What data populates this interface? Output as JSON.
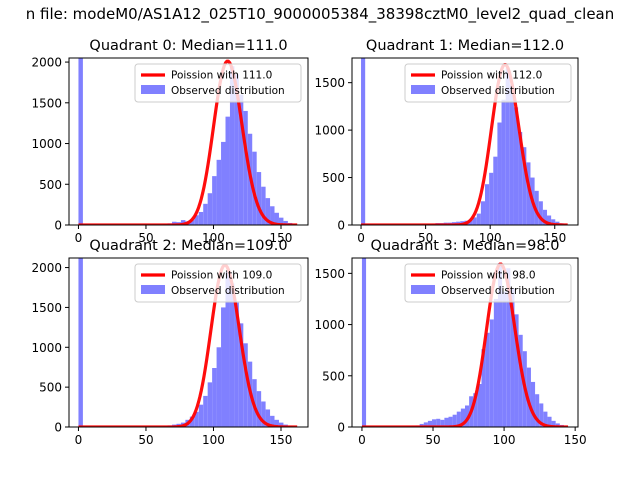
{
  "figure": {
    "suptitle": "n file: modeM0/AS1A12_025T10_9000005384_38398cztM0_level2_quad_clean"
  },
  "colors": {
    "bars": "#8080ff",
    "fit_line": "#ff0000",
    "axis": "#000000"
  },
  "chart_data": [
    {
      "type": "bar",
      "title": "Quadrant 0: Median=111.0",
      "xlabel": "",
      "ylabel": "",
      "xlim": [
        -7,
        170
      ],
      "ylim": [
        0,
        2050
      ],
      "xticks": [
        0,
        50,
        100,
        150
      ],
      "yticks": [
        0,
        500,
        1000,
        1500,
        2000
      ],
      "grid": false,
      "legend_position": "upper right",
      "series": [
        {
          "name": "Observed distribution",
          "kind": "histogram",
          "bin_width": 3.3,
          "bins": [
            [
              0,
              2050
            ],
            [
              3.3,
              10
            ],
            [
              6.6,
              8
            ],
            [
              9.9,
              6
            ],
            [
              13.2,
              5
            ],
            [
              16.5,
              5
            ],
            [
              19.8,
              4
            ],
            [
              23.1,
              4
            ],
            [
              26.4,
              4
            ],
            [
              29.7,
              4
            ],
            [
              33,
              3
            ],
            [
              36.3,
              3
            ],
            [
              39.6,
              3
            ],
            [
              42.9,
              3
            ],
            [
              46.2,
              4
            ],
            [
              49.5,
              4
            ],
            [
              52.8,
              5
            ],
            [
              56.1,
              5
            ],
            [
              59.4,
              6
            ],
            [
              62.7,
              10
            ],
            [
              66,
              20
            ],
            [
              69.3,
              40
            ],
            [
              72.6,
              35
            ],
            [
              75.9,
              60
            ],
            [
              79.2,
              45
            ],
            [
              82.5,
              60
            ],
            [
              85.8,
              120
            ],
            [
              89.1,
              160
            ],
            [
              92.4,
              260
            ],
            [
              95.7,
              390
            ],
            [
              99,
              600
            ],
            [
              102.3,
              800
            ],
            [
              105.6,
              1020
            ],
            [
              108.9,
              1330
            ],
            [
              112.2,
              1950
            ],
            [
              115.5,
              1850
            ],
            [
              118.8,
              1600
            ],
            [
              122.1,
              1400
            ],
            [
              125.4,
              1120
            ],
            [
              128.7,
              900
            ],
            [
              132,
              650
            ],
            [
              135.3,
              470
            ],
            [
              138.6,
              330
            ],
            [
              141.9,
              230
            ],
            [
              145.2,
              150
            ],
            [
              148.5,
              90
            ],
            [
              151.8,
              50
            ],
            [
              155.1,
              25
            ],
            [
              158.4,
              12
            ],
            [
              161.7,
              5
            ]
          ]
        },
        {
          "name": "Poission with 111.0",
          "kind": "poisson_line",
          "lambda": 111.0,
          "peak": 2010,
          "x_range": [
            0,
            162
          ]
        }
      ]
    },
    {
      "type": "bar",
      "title": "Quadrant 1: Median=112.0",
      "xlabel": "",
      "ylabel": "",
      "xlim": [
        -7,
        168
      ],
      "ylim": [
        0,
        1760
      ],
      "xticks": [
        0,
        50,
        100,
        150
      ],
      "yticks": [
        0,
        500,
        1000,
        1500
      ],
      "grid": false,
      "legend_position": "upper right",
      "series": [
        {
          "name": "Observed distribution",
          "kind": "histogram",
          "bin_width": 3.2,
          "bins": [
            [
              0,
              1760
            ],
            [
              3.2,
              10
            ],
            [
              6.4,
              8
            ],
            [
              9.6,
              6
            ],
            [
              12.8,
              5
            ],
            [
              16,
              5
            ],
            [
              19.2,
              4
            ],
            [
              22.4,
              4
            ],
            [
              25.6,
              4
            ],
            [
              28.8,
              4
            ],
            [
              32,
              3
            ],
            [
              35.2,
              3
            ],
            [
              38.4,
              3
            ],
            [
              41.6,
              3
            ],
            [
              44.8,
              4
            ],
            [
              48,
              5
            ],
            [
              51.2,
              10
            ],
            [
              54.4,
              15
            ],
            [
              57.6,
              20
            ],
            [
              60.8,
              20
            ],
            [
              64,
              25
            ],
            [
              67.2,
              25
            ],
            [
              70.4,
              30
            ],
            [
              73.6,
              35
            ],
            [
              76.8,
              40
            ],
            [
              80,
              45
            ],
            [
              83.2,
              50
            ],
            [
              86.4,
              80
            ],
            [
              89.6,
              120
            ],
            [
              92.8,
              250
            ],
            [
              96,
              430
            ],
            [
              99.2,
              550
            ],
            [
              102.4,
              720
            ],
            [
              105.6,
              1080
            ],
            [
              108.8,
              1320
            ],
            [
              112,
              1650
            ],
            [
              115.2,
              1480
            ],
            [
              118.4,
              1240
            ],
            [
              121.6,
              980
            ],
            [
              124.8,
              820
            ],
            [
              128,
              660
            ],
            [
              131.2,
              500
            ],
            [
              134.4,
              360
            ],
            [
              137.6,
              250
            ],
            [
              140.8,
              160
            ],
            [
              144,
              100
            ],
            [
              147.2,
              60
            ],
            [
              150.4,
              35
            ],
            [
              153.6,
              18
            ],
            [
              156.8,
              8
            ]
          ]
        },
        {
          "name": "Poission with 112.0",
          "kind": "poisson_line",
          "lambda": 112.0,
          "peak": 1690,
          "x_range": [
            0,
            160
          ]
        }
      ]
    },
    {
      "type": "bar",
      "title": "Quadrant 2: Median=109.0",
      "xlabel": "",
      "ylabel": "",
      "xlim": [
        -7,
        170
      ],
      "ylim": [
        0,
        2120
      ],
      "xticks": [
        0,
        50,
        100,
        150
      ],
      "yticks": [
        0,
        500,
        1000,
        1500,
        2000
      ],
      "grid": false,
      "legend_position": "upper right",
      "series": [
        {
          "name": "Observed distribution",
          "kind": "histogram",
          "bin_width": 3.3,
          "bins": [
            [
              0,
              2120
            ],
            [
              3.3,
              10
            ],
            [
              6.6,
              8
            ],
            [
              9.9,
              6
            ],
            [
              13.2,
              5
            ],
            [
              16.5,
              5
            ],
            [
              19.8,
              4
            ],
            [
              23.1,
              4
            ],
            [
              26.4,
              4
            ],
            [
              29.7,
              4
            ],
            [
              33,
              3
            ],
            [
              36.3,
              3
            ],
            [
              39.6,
              3
            ],
            [
              42.9,
              3
            ],
            [
              46.2,
              4
            ],
            [
              49.5,
              4
            ],
            [
              52.8,
              5
            ],
            [
              56.1,
              5
            ],
            [
              59.4,
              6
            ],
            [
              62.7,
              10
            ],
            [
              66,
              20
            ],
            [
              69.3,
              30
            ],
            [
              72.6,
              40
            ],
            [
              75.9,
              55
            ],
            [
              79.2,
              90
            ],
            [
              82.5,
              130
            ],
            [
              85.8,
              190
            ],
            [
              89.1,
              280
            ],
            [
              92.4,
              390
            ],
            [
              95.7,
              560
            ],
            [
              99,
              740
            ],
            [
              102.3,
              1000
            ],
            [
              105.6,
              1500
            ],
            [
              108.9,
              1950
            ],
            [
              112.2,
              1800
            ],
            [
              115.5,
              1560
            ],
            [
              118.8,
              1300
            ],
            [
              122.1,
              1050
            ],
            [
              125.4,
              820
            ],
            [
              128.7,
              600
            ],
            [
              132,
              450
            ],
            [
              135.3,
              320
            ],
            [
              138.6,
              220
            ],
            [
              141.9,
              140
            ],
            [
              145.2,
              90
            ],
            [
              148.5,
              55
            ],
            [
              151.8,
              30
            ],
            [
              155.1,
              15
            ],
            [
              158.4,
              8
            ],
            [
              161.7,
              4
            ]
          ]
        },
        {
          "name": "Poission with 109.0",
          "kind": "poisson_line",
          "lambda": 109.0,
          "peak": 2030,
          "x_range": [
            0,
            162
          ]
        }
      ]
    },
    {
      "type": "bar",
      "title": "Quadrant 3: Median=98.0",
      "xlabel": "",
      "ylabel": "",
      "xlim": [
        -7,
        152
      ],
      "ylim": [
        0,
        1650
      ],
      "xticks": [
        0,
        50,
        100,
        150
      ],
      "yticks": [
        0,
        500,
        1000,
        1500
      ],
      "grid": false,
      "legend_position": "upper right",
      "series": [
        {
          "name": "Observed distribution",
          "kind": "histogram",
          "bin_width": 2.9,
          "bins": [
            [
              0,
              1650
            ],
            [
              2.9,
              10
            ],
            [
              5.8,
              8
            ],
            [
              8.7,
              6
            ],
            [
              11.6,
              5
            ],
            [
              14.5,
              5
            ],
            [
              17.4,
              4
            ],
            [
              20.3,
              4
            ],
            [
              23.2,
              4
            ],
            [
              26.1,
              4
            ],
            [
              29,
              5
            ],
            [
              31.9,
              8
            ],
            [
              34.8,
              12
            ],
            [
              37.7,
              15
            ],
            [
              40.6,
              30
            ],
            [
              43.5,
              45
            ],
            [
              46.4,
              60
            ],
            [
              49.3,
              75
            ],
            [
              52.2,
              80
            ],
            [
              55.1,
              70
            ],
            [
              58,
              90
            ],
            [
              60.9,
              100
            ],
            [
              63.8,
              120
            ],
            [
              66.7,
              150
            ],
            [
              69.6,
              180
            ],
            [
              72.5,
              210
            ],
            [
              75.4,
              300
            ],
            [
              78.3,
              330
            ],
            [
              81.2,
              420
            ],
            [
              84.1,
              760
            ],
            [
              87,
              920
            ],
            [
              89.9,
              1050
            ],
            [
              92.8,
              1250
            ],
            [
              95.7,
              1600
            ],
            [
              98.6,
              1320
            ],
            [
              101.5,
              1550
            ],
            [
              104.4,
              1350
            ],
            [
              107.3,
              1100
            ],
            [
              110.2,
              900
            ],
            [
              113.1,
              740
            ],
            [
              116,
              580
            ],
            [
              118.9,
              440
            ],
            [
              121.8,
              320
            ],
            [
              124.7,
              230
            ],
            [
              127.6,
              150
            ],
            [
              130.5,
              100
            ],
            [
              133.4,
              60
            ],
            [
              136.3,
              35
            ],
            [
              139.2,
              20
            ],
            [
              142.1,
              10
            ]
          ]
        },
        {
          "name": "Poission with 98.0",
          "kind": "poisson_line",
          "lambda": 98.0,
          "peak": 1590,
          "x_range": [
            0,
            145
          ]
        }
      ]
    }
  ]
}
